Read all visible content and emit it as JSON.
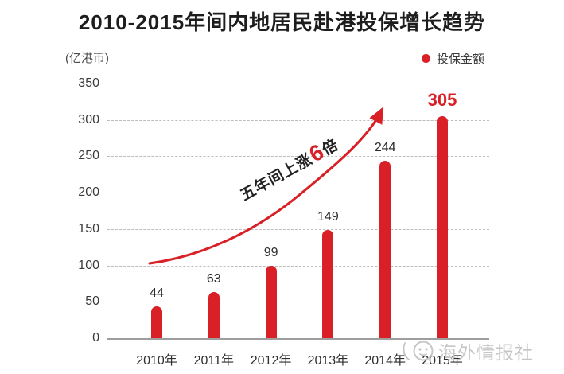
{
  "title": "2010-2015年间内地居民赴港投保增长趋势",
  "unit_label": "(亿港币)",
  "legend": {
    "label": "投保金额",
    "dot_color": "#d92026"
  },
  "annotation": {
    "prefix": "五年间上涨",
    "multiplier": "6",
    "suffix": "倍"
  },
  "watermark": {
    "text": "海外情报社",
    "logo": "smiley-face-icon"
  },
  "colors": {
    "bar": "#d92026",
    "value_label": "#2b2b2b",
    "highlight_label": "#d92026",
    "gridline": "#bdbdbd",
    "axis": "#9e9e9e",
    "watermark": "#c6c6c6"
  },
  "chart_data": {
    "type": "bar",
    "title": "2010-2015年间内地居民赴港投保增长趋势",
    "unit": "亿港币",
    "legend_entries": [
      "投保金额"
    ],
    "legend_position": "top-right",
    "categories": [
      "2010年",
      "2011年",
      "2012年",
      "2013年",
      "2014年",
      "2015年"
    ],
    "values": [
      44,
      63,
      99,
      149,
      244,
      305
    ],
    "highlight_index": 5,
    "yticks": [
      0,
      50,
      100,
      150,
      200,
      250,
      300,
      350
    ],
    "ylim": [
      0,
      350
    ],
    "grid": "horizontal-dashed",
    "annotation_text": "五年间上涨6倍"
  }
}
